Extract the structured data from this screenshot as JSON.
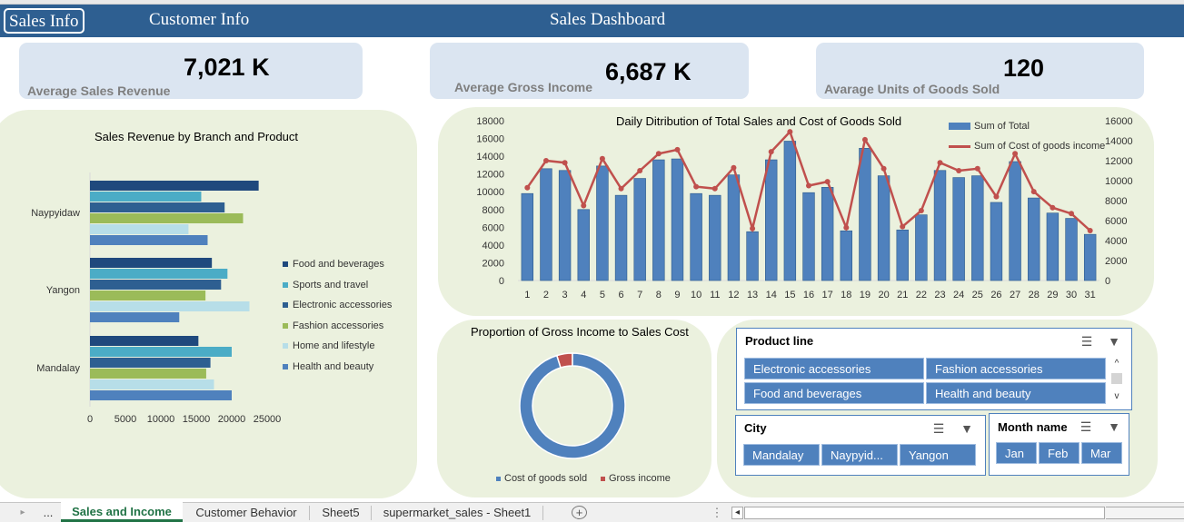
{
  "header": {
    "nav_sales": "Sales Info",
    "nav_customer": "Customer Info",
    "title": "Sales Dashboard"
  },
  "kpis": [
    {
      "value": "7,021 K",
      "label": "Average Sales Revenue"
    },
    {
      "value": "6,687 K",
      "label": "Average Gross Income"
    },
    {
      "value": "120",
      "label": "Avarage Units of Goods Sold"
    }
  ],
  "chart_data": [
    {
      "type": "bar",
      "orientation": "horizontal",
      "title": "Sales Revenue by Branch and Product",
      "categories": [
        "Naypyidaw",
        "Yangon",
        "Mandalay"
      ],
      "xlim": [
        0,
        25000
      ],
      "xticks": [
        "0",
        "5000",
        "10000",
        "15000",
        "20000",
        "25000"
      ],
      "legend_position": "right",
      "series": [
        {
          "name": "Food and beverages",
          "color": "#1f497d",
          "values": [
            23800,
            17200,
            15300
          ]
        },
        {
          "name": "Sports and travel",
          "color": "#4bacc6",
          "values": [
            15700,
            19400,
            20000
          ]
        },
        {
          "name": "Electronic accessories",
          "color": "#2e5f91",
          "values": [
            19000,
            18500,
            17000
          ]
        },
        {
          "name": "Fashion accessories",
          "color": "#9bbb59",
          "values": [
            21600,
            16300,
            16400
          ]
        },
        {
          "name": "Home and lifestyle",
          "color": "#b7dee8",
          "values": [
            13900,
            22500,
            17500
          ]
        },
        {
          "name": "Health and beauty",
          "color": "#4f81bd",
          "values": [
            16600,
            12600,
            20000
          ]
        }
      ]
    },
    {
      "type": "bar",
      "title": "Daily Ditribution of Total Sales and Cost of Goods Sold",
      "categories": [
        "1",
        "2",
        "3",
        "4",
        "5",
        "6",
        "7",
        "8",
        "9",
        "10",
        "11",
        "12",
        "13",
        "14",
        "15",
        "16",
        "17",
        "18",
        "19",
        "20",
        "21",
        "22",
        "23",
        "24",
        "25",
        "26",
        "27",
        "28",
        "29",
        "30",
        "31"
      ],
      "ylim": [
        0,
        18000
      ],
      "yticks": [
        "0",
        "2000",
        "4000",
        "6000",
        "8000",
        "10000",
        "12000",
        "14000",
        "16000",
        "18000"
      ],
      "y2lim": [
        0,
        16000
      ],
      "y2ticks": [
        "0",
        "2000",
        "4000",
        "6000",
        "8000",
        "10000",
        "12000",
        "14000",
        "16000"
      ],
      "legend_position": "top-right",
      "series": [
        {
          "name": "Sum of Total",
          "type": "bar",
          "color": "#4f81bd",
          "axis": "left",
          "values": [
            9800,
            12600,
            12400,
            8000,
            12900,
            9600,
            11500,
            13600,
            13700,
            9800,
            9600,
            11900,
            5500,
            13600,
            15700,
            9900,
            10500,
            5600,
            14900,
            11800,
            5700,
            7400,
            12400,
            11600,
            11800,
            8800,
            13400,
            9300,
            7600,
            7000,
            5200
          ]
        },
        {
          "name": "Sum of Cost of goods income",
          "type": "line",
          "color": "#c0504d",
          "axis": "right",
          "values": [
            9300,
            12000,
            11800,
            7500,
            12200,
            9200,
            11000,
            12700,
            13100,
            9400,
            9200,
            11300,
            5200,
            12900,
            14900,
            9500,
            9900,
            5300,
            14100,
            11200,
            5400,
            7000,
            11800,
            11000,
            11200,
            8400,
            12700,
            8900,
            7300,
            6700,
            5000
          ]
        }
      ]
    },
    {
      "type": "pie",
      "variant": "donut",
      "title": "Proportion of Gross Income to Sales Cost",
      "legend_position": "bottom",
      "series": [
        {
          "name": "Cost of goods sold",
          "color": "#4f81bd",
          "value": 95.2
        },
        {
          "name": "Gross income",
          "color": "#c0504d",
          "value": 4.8
        }
      ]
    }
  ],
  "slicers": {
    "product": {
      "title": "Product line",
      "items": [
        "Electronic accessories",
        "Fashion accessories",
        "Food and beverages",
        "Health and beauty"
      ],
      "scroll_up": "^",
      "scroll_down": "v"
    },
    "city": {
      "title": "City",
      "items": [
        "Mandalay",
        "Naypyid...",
        "Yangon"
      ]
    },
    "month": {
      "title": "Month name",
      "items": [
        "Jan",
        "Feb",
        "Mar"
      ]
    }
  },
  "sheet_tabs": {
    "nav_prev": "▸",
    "more": "...",
    "tabs": [
      "Sales and Income",
      "Customer Behavior",
      "Sheet5",
      "supermarket_sales - Sheet1"
    ],
    "active": "Sales and Income",
    "add": "+",
    "options": "⋮",
    "scroll_left": "◂"
  }
}
